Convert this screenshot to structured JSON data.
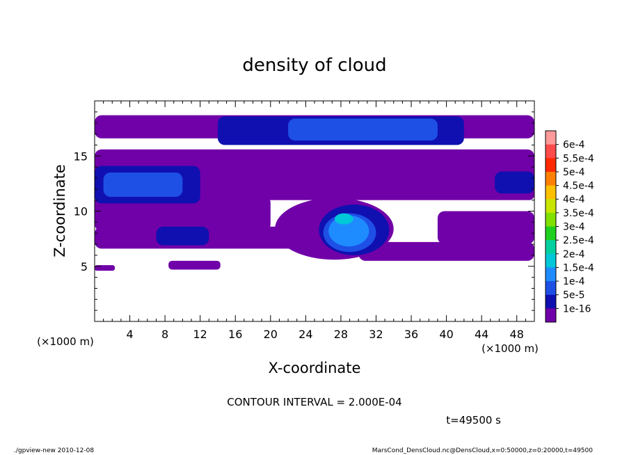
{
  "chart_data": {
    "type": "heatmap",
    "title": "density of cloud",
    "xlabel": "X-coordinate",
    "ylabel": "Z-coordinate",
    "x_unit": "(×1000 m)",
    "y_unit": "(×1000 m)",
    "xlim": [
      0,
      50
    ],
    "ylim": [
      0,
      20
    ],
    "x_ticks": [
      "4",
      "8",
      "12",
      "16",
      "20",
      "24",
      "28",
      "32",
      "36",
      "40",
      "44",
      "48"
    ],
    "y_ticks": [
      "5",
      "10",
      "15"
    ],
    "colorbar": {
      "labels": [
        "6e-4",
        "5.5e-4",
        "5e-4",
        "4.5e-4",
        "4e-4",
        "3.5e-4",
        "3e-4",
        "2.5e-4",
        "2e-4",
        "1.5e-4",
        "1e-4",
        "5e-5",
        "1e-16"
      ],
      "colors": [
        "#ff9a9a",
        "#ff4a4a",
        "#ff2800",
        "#ff8000",
        "#ffc000",
        "#c8e600",
        "#80e000",
        "#20d020",
        "#00d0a0",
        "#00c8d8",
        "#1e8cff",
        "#1e50e6",
        "#1010b0",
        "#7000a8"
      ]
    },
    "regions": [
      {
        "level": "1e-16",
        "shape": "band",
        "x": [
          0,
          50
        ],
        "z": [
          16.6,
          18.7
        ]
      },
      {
        "level": "1e-16",
        "shape": "band",
        "x": [
          0,
          50
        ],
        "z": [
          12.0,
          15.6
        ]
      },
      {
        "level": "1e-16",
        "shape": "band",
        "x": [
          0,
          50
        ],
        "z": [
          11.0,
          12.2
        ]
      },
      {
        "level": "1e-16",
        "shape": "band",
        "x": [
          0,
          20
        ],
        "z": [
          8.2,
          11.4
        ]
      },
      {
        "level": "1e-16",
        "shape": "band",
        "x": [
          0,
          25
        ],
        "z": [
          6.6,
          8.6
        ]
      },
      {
        "level": "1e-16",
        "shape": "patch",
        "x": [
          20.5,
          34
        ],
        "z": [
          5.6,
          11.2
        ]
      },
      {
        "level": "1e-16",
        "shape": "band",
        "x": [
          30,
          50
        ],
        "z": [
          5.5,
          7.2
        ]
      },
      {
        "level": "1e-16",
        "shape": "band",
        "x": [
          39,
          50
        ],
        "z": [
          7.0,
          10.0
        ]
      },
      {
        "level": "1e-16",
        "shape": "band",
        "x": [
          0,
          2.3
        ],
        "z": [
          4.6,
          5.1
        ]
      },
      {
        "level": "1e-16",
        "shape": "band",
        "x": [
          8.4,
          14.3
        ],
        "z": [
          4.7,
          5.5
        ]
      },
      {
        "level": "5e-5",
        "shape": "band",
        "x": [
          14,
          42
        ],
        "z": [
          16.0,
          18.6
        ]
      },
      {
        "level": "1e-4",
        "shape": "band",
        "x": [
          22,
          39
        ],
        "z": [
          16.4,
          18.4
        ]
      },
      {
        "level": "5e-5",
        "shape": "band",
        "x": [
          0,
          12
        ],
        "z": [
          10.7,
          14.1
        ]
      },
      {
        "level": "1e-4",
        "shape": "band",
        "x": [
          1,
          10
        ],
        "z": [
          11.3,
          13.5
        ]
      },
      {
        "level": "5e-5",
        "shape": "band",
        "x": [
          45.5,
          50
        ],
        "z": [
          11.6,
          13.6
        ]
      },
      {
        "level": "5e-5",
        "shape": "band",
        "x": [
          7,
          13
        ],
        "z": [
          6.9,
          8.6
        ]
      },
      {
        "level": "5e-5",
        "shape": "patch",
        "x": [
          25.5,
          33.5
        ],
        "z": [
          6.0,
          10.6
        ]
      },
      {
        "level": "1e-4",
        "shape": "patch",
        "x": [
          26,
          32
        ],
        "z": [
          6.3,
          9.8
        ]
      },
      {
        "level": "1.5e-4",
        "shape": "patch",
        "x": [
          26.6,
          31.2
        ],
        "z": [
          6.8,
          9.6
        ]
      },
      {
        "level": "2e-4",
        "shape": "patch",
        "x": [
          27.3,
          29.4
        ],
        "z": [
          8.8,
          9.8
        ]
      }
    ]
  },
  "annotations": {
    "contour_interval": "CONTOUR INTERVAL = 2.000E-04",
    "time": "t=49500 s",
    "footer_left": "./gpview-new   2010-12-08",
    "footer_right": "MarsCond_DensCloud.nc@DensCloud,x=0:50000,z=0:20000,t=49500"
  }
}
